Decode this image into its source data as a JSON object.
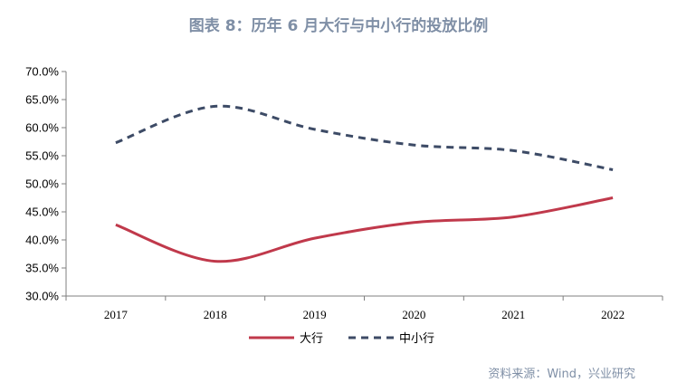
{
  "chart_data": {
    "type": "line",
    "title": "图表 8：历年 6 月大行与中小行的投放比例",
    "x": [
      "2017",
      "2018",
      "2019",
      "2020",
      "2021",
      "2022"
    ],
    "ylim": [
      0.3,
      0.7
    ],
    "yticks": [
      "30.0%",
      "35.0%",
      "40.0%",
      "45.0%",
      "50.0%",
      "55.0%",
      "60.0%",
      "65.0%",
      "70.0%"
    ],
    "series": [
      {
        "name": "大行",
        "values": [
          0.427,
          0.362,
          0.403,
          0.431,
          0.441,
          0.475
        ],
        "color": "#c0394b",
        "style": "solid"
      },
      {
        "name": "中小行",
        "values": [
          0.573,
          0.638,
          0.597,
          0.569,
          0.559,
          0.525
        ],
        "color": "#3d4b66",
        "style": "dashed"
      }
    ],
    "legend": "bottom",
    "grid": false
  },
  "source": "资料来源：Wind，兴业研究"
}
